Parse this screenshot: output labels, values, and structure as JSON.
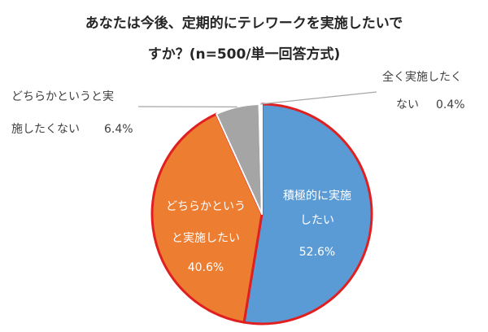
{
  "chart_data": {
    "type": "pie",
    "title_lines": [
      "あなたは今後、定期的にテレワークを実施したいで",
      "すか？(n=500/単一回答方式)"
    ],
    "slices": [
      {
        "label_lines": [
          "積極的に実施",
          "したい"
        ],
        "value_text": "52.6%",
        "value": 52.6,
        "color": "#5B9BD5"
      },
      {
        "label_lines": [
          "どちらかというと実施したい"
        ],
        "label_lines_inside": [
          "どちらかという",
          "と実施したい"
        ],
        "value_text": "40.6%",
        "value": 40.6,
        "color": "#ED7D31"
      },
      {
        "label_lines_outside": [
          "どちらかというと実",
          "施したくない"
        ],
        "value_text": "6.4%",
        "value": 6.4,
        "color": "#A5A5A5"
      },
      {
        "label_lines_outside": [
          "全く実施したく",
          "ない"
        ],
        "value_text": "0.4%",
        "value": 0.4,
        "color": "#FFFFFF"
      }
    ],
    "highlight_color": "#E02020",
    "leader_line_color": "#A6A6A6"
  }
}
